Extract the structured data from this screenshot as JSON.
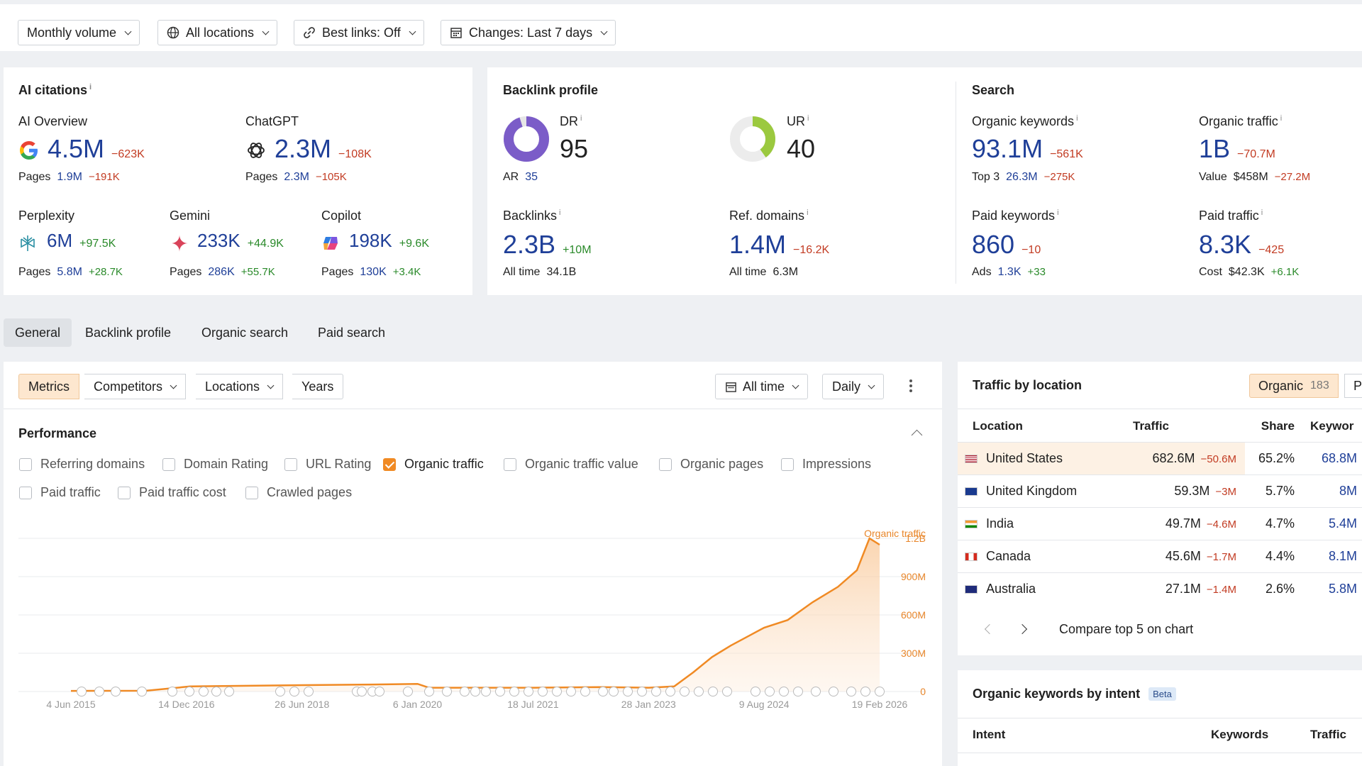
{
  "filters": {
    "volume": "Monthly volume",
    "locations": "All locations",
    "best_links": "Best links: Off",
    "changes": "Changes: Last 7 days"
  },
  "ai_citations": {
    "title": "AI citations",
    "overview": {
      "label": "AI Overview",
      "value": "4.5M",
      "change": "−623K",
      "pages_label": "Pages",
      "pages": "1.9M",
      "pages_change": "−191K"
    },
    "chatgpt": {
      "label": "ChatGPT",
      "value": "2.3M",
      "change": "−108K",
      "pages_label": "Pages",
      "pages": "2.3M",
      "pages_change": "−105K"
    },
    "perplexity": {
      "label": "Perplexity",
      "value": "6M",
      "change": "+97.5K",
      "pages_label": "Pages",
      "pages": "5.8M",
      "pages_change": "+28.7K"
    },
    "gemini": {
      "label": "Gemini",
      "value": "233K",
      "change": "+44.9K",
      "pages_label": "Pages",
      "pages": "286K",
      "pages_change": "+55.7K"
    },
    "copilot": {
      "label": "Copilot",
      "value": "198K",
      "change": "+9.6K",
      "pages_label": "Pages",
      "pages": "130K",
      "pages_change": "+3.4K"
    }
  },
  "backlink_profile": {
    "title": "Backlink profile",
    "dr": {
      "label": "DR",
      "value": "95",
      "ar_label": "AR",
      "ar": "35",
      "fraction": 0.95
    },
    "ur": {
      "label": "UR",
      "value": "40",
      "fraction": 0.4
    },
    "backlinks": {
      "label": "Backlinks",
      "value": "2.3B",
      "change": "+10M",
      "sub_label": "All time",
      "sub": "34.1B"
    },
    "ref_domains": {
      "label": "Ref. domains",
      "value": "1.4M",
      "change": "−16.2K",
      "sub_label": "All time",
      "sub": "6.3M"
    }
  },
  "search": {
    "title": "Search",
    "organic_keywords": {
      "label": "Organic keywords",
      "value": "93.1M",
      "change": "−561K",
      "sub_label": "Top 3",
      "sub": "26.3M",
      "sub_change": "−275K"
    },
    "organic_traffic": {
      "label": "Organic traffic",
      "value": "1B",
      "change": "−70.7M",
      "sub_label": "Value",
      "sub": "$458M",
      "sub_change": "−27.2M"
    },
    "paid_keywords": {
      "label": "Paid keywords",
      "value": "860",
      "change": "−10",
      "sub_label": "Ads",
      "sub": "1.3K",
      "sub_change": "+33"
    },
    "paid_traffic": {
      "label": "Paid traffic",
      "value": "8.3K",
      "change": "−425",
      "sub_label": "Cost",
      "sub": "$42.3K",
      "sub_change": "+6.1K"
    }
  },
  "tabs": [
    "General",
    "Backlink profile",
    "Organic search",
    "Paid search"
  ],
  "chart_controls": {
    "metrics": "Metrics",
    "competitors": "Competitors",
    "locations": "Locations",
    "years": "Years",
    "range": "All time",
    "interval": "Daily"
  },
  "performance": {
    "title": "Performance",
    "checkboxes": [
      {
        "label": "Referring domains",
        "checked": false
      },
      {
        "label": "Domain Rating",
        "checked": false
      },
      {
        "label": "URL Rating",
        "checked": false
      },
      {
        "label": "Organic traffic",
        "checked": true
      },
      {
        "label": "Organic traffic value",
        "checked": false
      },
      {
        "label": "Organic pages",
        "checked": false
      },
      {
        "label": "Impressions",
        "checked": false
      },
      {
        "label": "Paid traffic",
        "checked": false
      },
      {
        "label": "Paid traffic cost",
        "checked": false
      },
      {
        "label": "Crawled pages",
        "checked": false
      }
    ]
  },
  "chart_data": {
    "type": "area",
    "series": [
      {
        "name": "Organic traffic",
        "color": "#f08a24"
      }
    ],
    "x": [
      "2015-06-04",
      "2016-06-01",
      "2017-01-01",
      "2018-06-26",
      "2019-06-01",
      "2020-01-06",
      "2020-03-01",
      "2021-07-18",
      "2022-06-01",
      "2023-01-28",
      "2023-06-01",
      "2023-09-01",
      "2023-12-01",
      "2024-03-01",
      "2024-06-01",
      "2024-08-09",
      "2024-12-01",
      "2025-04-01",
      "2025-08-01",
      "2025-11-01",
      "2026-01-01",
      "2026-02-19"
    ],
    "y": [
      5,
      6,
      40,
      50,
      55,
      60,
      30,
      30,
      35,
      30,
      40,
      150,
      270,
      360,
      440,
      500,
      560,
      700,
      820,
      950,
      1200,
      1150
    ],
    "y_unit": "M",
    "x_tick_labels": [
      "4 Jun 2015",
      "14 Dec 2016",
      "26 Jun 2018",
      "6 Jan 2020",
      "18 Jul 2021",
      "28 Jan 2023",
      "9 Aug 2024",
      "19 Feb 2026"
    ],
    "y_tick_labels": [
      "1.2B",
      "900M",
      "600M",
      "300M",
      "0"
    ],
    "y_ticks": [
      1200,
      900,
      600,
      300,
      0
    ],
    "ylim": [
      0,
      1250
    ],
    "legend": "top-right",
    "grid": true
  },
  "traffic_by_location": {
    "title": "Traffic by location",
    "toggle_label": "Organic",
    "toggle_count": "183",
    "next_tab_partial": "P",
    "columns": [
      "Location",
      "Traffic",
      "Share",
      "Keywor"
    ],
    "rows": [
      {
        "country": "United States",
        "traffic": "682.6M",
        "change": "−50.6M",
        "share": "65.2%",
        "keywords": "68.8M"
      },
      {
        "country": "United Kingdom",
        "traffic": "59.3M",
        "change": "−3M",
        "share": "5.7%",
        "keywords": "8M"
      },
      {
        "country": "India",
        "traffic": "49.7M",
        "change": "−4.6M",
        "share": "4.7%",
        "keywords": "5.4M"
      },
      {
        "country": "Canada",
        "traffic": "45.6M",
        "change": "−1.7M",
        "share": "4.4%",
        "keywords": "8.1M"
      },
      {
        "country": "Australia",
        "traffic": "27.1M",
        "change": "−1.4M",
        "share": "2.6%",
        "keywords": "5.8M"
      }
    ],
    "compare_label": "Compare top 5 on chart"
  },
  "intent": {
    "title": "Organic keywords by intent",
    "badge": "Beta",
    "columns": [
      "Intent",
      "Keywords",
      "Traffic"
    ]
  },
  "icons": {
    "volume": "chevron-down-icon",
    "locations": "globe-icon",
    "best_links": "link-icon",
    "changes": "calendar-icon",
    "more": "kebab-menu-icon",
    "collapse": "chevron-up-icon"
  }
}
